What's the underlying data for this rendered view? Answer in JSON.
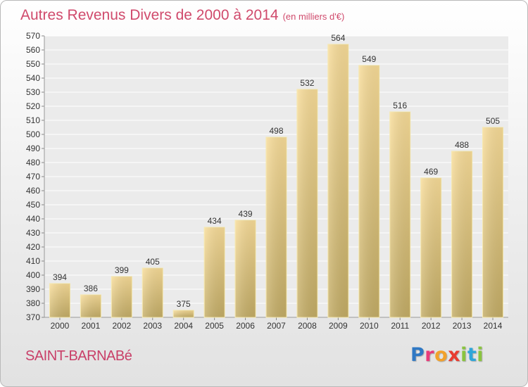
{
  "header": {
    "title": "Autres Revenus Divers de 2000 à 2014",
    "subtitle": "(en milliers d'€)"
  },
  "footer": {
    "commune": "SAINT-BARNABé",
    "logo_letters": [
      "P",
      "r",
      "o",
      "x",
      "i",
      "t",
      "i"
    ],
    "logo_colors": [
      "#2f78c4",
      "#e83b7a",
      "#f2a12b",
      "#e83b30",
      "#8ac43f",
      "#2fa6d9",
      "#8ac43f"
    ]
  },
  "chart_data": {
    "type": "bar",
    "title": "Autres Revenus Divers de 2000 à 2014",
    "subtitle": "(en milliers d'€)",
    "categories": [
      "2000",
      "2001",
      "2002",
      "2003",
      "2004",
      "2005",
      "2006",
      "2007",
      "2008",
      "2009",
      "2010",
      "2011",
      "2012",
      "2013",
      "2014"
    ],
    "values": [
      394,
      386,
      399,
      405,
      375,
      434,
      439,
      498,
      532,
      564,
      549,
      516,
      469,
      488,
      505
    ],
    "ylim": [
      370,
      570
    ],
    "yticks": [
      370,
      380,
      390,
      400,
      410,
      420,
      430,
      440,
      450,
      460,
      470,
      480,
      490,
      500,
      510,
      520,
      530,
      540,
      550,
      560,
      570
    ],
    "grid": true,
    "bar_color_light": "#f8dc98",
    "bar_color_dark": "#c4ad66"
  }
}
